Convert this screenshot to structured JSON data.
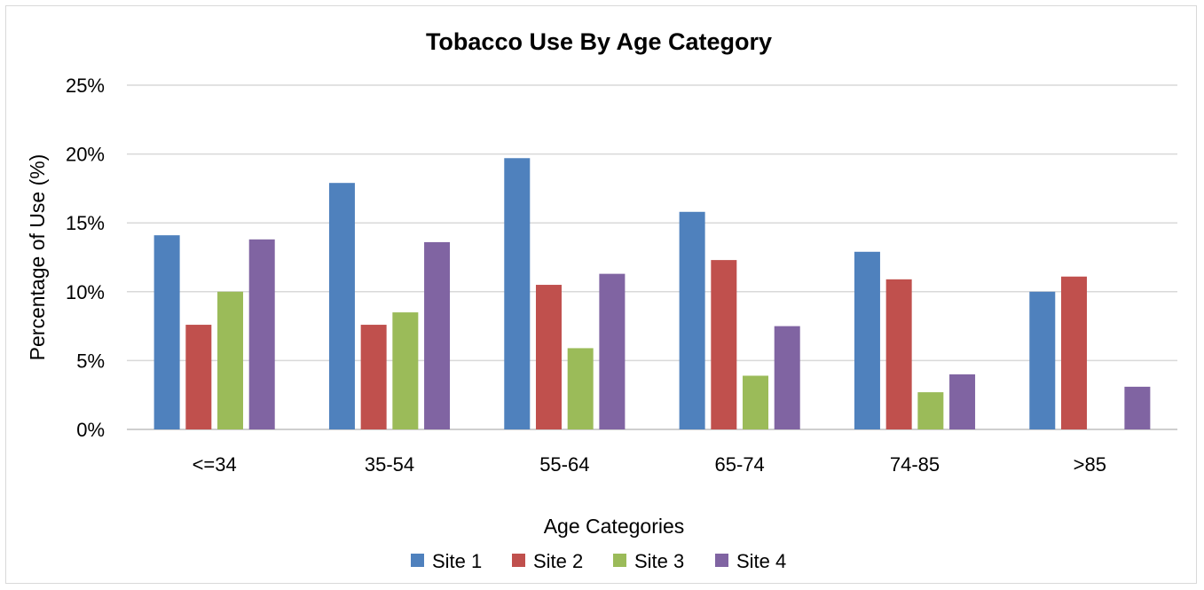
{
  "chart_data": {
    "type": "bar",
    "title": "Tobacco Use By Age Category",
    "xlabel": "Age Categories",
    "ylabel": "Percentage of Use (%)",
    "categories": [
      "<=34",
      "35-54",
      "55-64",
      "65-74",
      "74-85",
      ">85"
    ],
    "ylim": [
      0,
      25
    ],
    "yticks": [
      0,
      5,
      10,
      15,
      20,
      25
    ],
    "ytick_labels": [
      "0%",
      "5%",
      "10%",
      "15%",
      "20%",
      "25%"
    ],
    "grid": true,
    "legend_position": "bottom",
    "series": [
      {
        "name": "Site 1",
        "color": "#4F81BD",
        "values": [
          14.1,
          17.9,
          19.7,
          15.8,
          12.9,
          10.0
        ]
      },
      {
        "name": "Site 2",
        "color": "#C0504D",
        "values": [
          7.6,
          7.6,
          10.5,
          12.3,
          10.9,
          11.1
        ]
      },
      {
        "name": "Site 3",
        "color": "#9BBB59",
        "values": [
          10.0,
          8.5,
          5.9,
          3.9,
          2.7,
          null
        ]
      },
      {
        "name": "Site 4",
        "color": "#8064A2",
        "values": [
          13.8,
          13.6,
          11.3,
          7.5,
          4.0,
          3.1
        ]
      }
    ]
  }
}
